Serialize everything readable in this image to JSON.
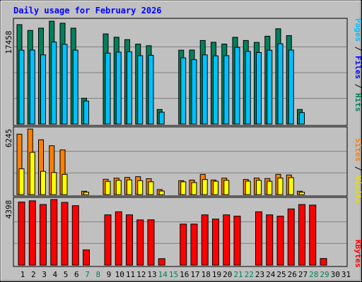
{
  "chart_data": {
    "type": "bar",
    "title": "Daily usage for February 2026",
    "x": [
      "1",
      "2",
      "3",
      "4",
      "5",
      "6",
      "7",
      "8",
      "9",
      "10",
      "11",
      "12",
      "13",
      "14",
      "15",
      "16",
      "17",
      "18",
      "19",
      "20",
      "21",
      "22",
      "23",
      "24",
      "25",
      "26",
      "27",
      "28",
      "29",
      "30",
      "31"
    ],
    "weekend_days": [
      "7",
      "8",
      "14",
      "15",
      "21",
      "22",
      "28",
      "29"
    ],
    "panels": [
      {
        "name": "hits_files_pages",
        "ymax_label": "17458",
        "ymax": 17458,
        "right_labels": [
          "Pages",
          "Files",
          "Hits"
        ],
        "series": [
          {
            "name": "Hits",
            "color": "#00805c",
            "values": [
              16865,
              15883,
              16274,
              17458,
              17113,
              16271,
              4392,
              0,
              15294,
              14729,
              14325,
              13571,
              13289,
              2476,
              0,
              12536,
              12559,
              14179,
              13878,
              13576,
              14723,
              14179,
              13858,
              14908,
              16175,
              15009,
              2476,
              0,
              0,
              0,
              0
            ]
          },
          {
            "name": "Files",
            "color": "#00c0ff",
            "values": [
              12536,
              12559,
              11744,
              13917,
              13538,
              12536,
              3918,
              0,
              12040,
              12202,
              12264,
              11603,
              11668,
              2012,
              0,
              11238,
              10928,
              11744,
              11571,
              11603,
              13014,
              12328,
              12140,
              12536,
              13631,
              12559,
              1950,
              0,
              0,
              0,
              0
            ]
          },
          {
            "name": "Pages",
            "color": "#00e8ff",
            "values": [
              0,
              0,
              0,
              0,
              0,
              0,
              0,
              0,
              0,
              0,
              0,
              0,
              0,
              0,
              0,
              0,
              0,
              0,
              0,
              0,
              0,
              0,
              0,
              0,
              0,
              0,
              0,
              0,
              0,
              0,
              0
            ]
          }
        ]
      },
      {
        "name": "visits_sites",
        "ymax_label": "6245",
        "ymax": 6245,
        "right_labels": [
          "Sites",
          "Visits"
        ],
        "series": [
          {
            "name": "Visits",
            "color": "#ff8000",
            "values": [
              5758,
              6245,
              5218,
              4654,
              4256,
              0,
              319,
              0,
              1456,
              1566,
              1634,
              1705,
              1513,
              477,
              0,
              1323,
              1381,
              1928,
              1387,
              1566,
              0,
              1442,
              1576,
              1527,
              1928,
              1865,
              319,
              0,
              0,
              0,
              0
            ]
          },
          {
            "name": "Sites",
            "color": "#ffff00",
            "values": [
              2455,
              4024,
              2210,
              2098,
              1927,
              0,
              222,
              0,
              1257,
              1353,
              1402,
              1326,
              1218,
              335,
              0,
              1218,
              1142,
              1437,
              1270,
              1353,
              0,
              1276,
              1358,
              1270,
              1576,
              1611,
              226,
              0,
              0,
              0,
              0
            ]
          }
        ]
      },
      {
        "name": "kbytes",
        "ymax_label": "4398",
        "ymax": 4398,
        "right_labels": [
          "KBytes"
        ],
        "series": [
          {
            "name": "KBytes",
            "color": "#ff0000",
            "values": [
              4229,
              4311,
              4063,
              4398,
              4205,
              3986,
              1021,
              0,
              3371,
              3576,
              3371,
              3033,
              3039,
              431,
              0,
              2749,
              2749,
              3370,
              3087,
              3370,
              3282,
              0,
              3576,
              3371,
              3282,
              3768,
              4063,
              4024,
              441,
              0,
              0
            ]
          }
        ]
      }
    ]
  }
}
